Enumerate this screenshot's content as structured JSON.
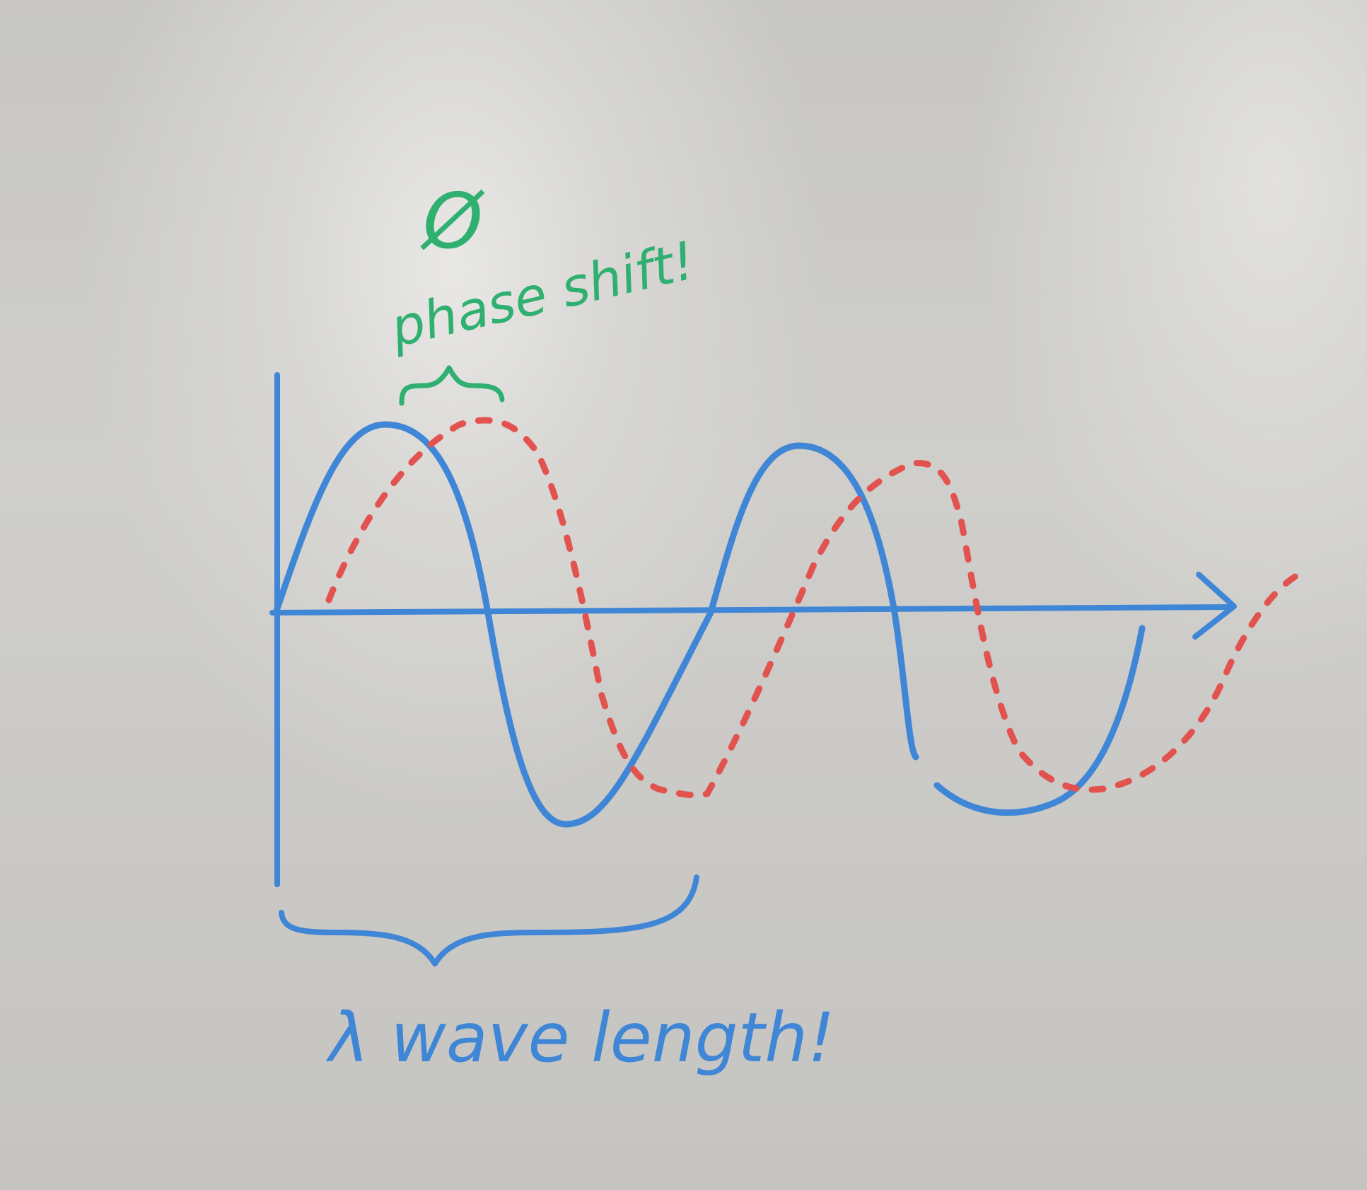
{
  "annotations": {
    "phi_symbol": "Ø",
    "phase_label": "phase shift!",
    "wavelength_label": "λ wave length!"
  },
  "colors": {
    "blue_marker": "#3f86d6",
    "red_marker": "#e2534f",
    "green_marker": "#2fb071"
  }
}
